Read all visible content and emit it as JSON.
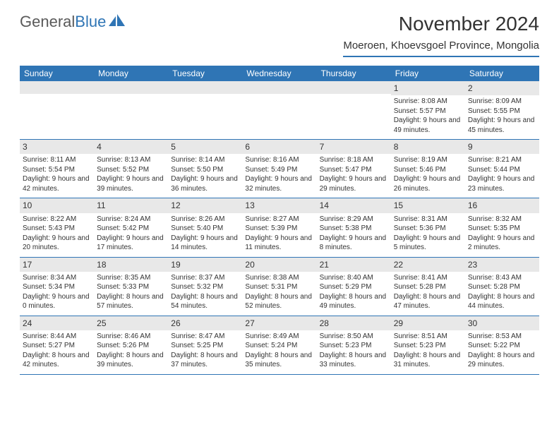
{
  "logo": {
    "text1": "General",
    "text2": "Blue"
  },
  "title": "November 2024",
  "location": "Moeroen, Khoevsgoel Province, Mongolia",
  "colors": {
    "header_bg": "#2f75b5",
    "header_text": "#ffffff",
    "daynum_bg": "#e8e8e8",
    "border": "#2f75b5",
    "body_text": "#333333",
    "logo_gray": "#5a5a5a",
    "logo_blue": "#2f75b5",
    "background": "#ffffff"
  },
  "day_labels": [
    "Sunday",
    "Monday",
    "Tuesday",
    "Wednesday",
    "Thursday",
    "Friday",
    "Saturday"
  ],
  "weeks": [
    [
      {
        "day": null
      },
      {
        "day": null
      },
      {
        "day": null
      },
      {
        "day": null
      },
      {
        "day": null
      },
      {
        "day": "1",
        "sunrise": "Sunrise: 8:08 AM",
        "sunset": "Sunset: 5:57 PM",
        "daylight": "Daylight: 9 hours and 49 minutes."
      },
      {
        "day": "2",
        "sunrise": "Sunrise: 8:09 AM",
        "sunset": "Sunset: 5:55 PM",
        "daylight": "Daylight: 9 hours and 45 minutes."
      }
    ],
    [
      {
        "day": "3",
        "sunrise": "Sunrise: 8:11 AM",
        "sunset": "Sunset: 5:54 PM",
        "daylight": "Daylight: 9 hours and 42 minutes."
      },
      {
        "day": "4",
        "sunrise": "Sunrise: 8:13 AM",
        "sunset": "Sunset: 5:52 PM",
        "daylight": "Daylight: 9 hours and 39 minutes."
      },
      {
        "day": "5",
        "sunrise": "Sunrise: 8:14 AM",
        "sunset": "Sunset: 5:50 PM",
        "daylight": "Daylight: 9 hours and 36 minutes."
      },
      {
        "day": "6",
        "sunrise": "Sunrise: 8:16 AM",
        "sunset": "Sunset: 5:49 PM",
        "daylight": "Daylight: 9 hours and 32 minutes."
      },
      {
        "day": "7",
        "sunrise": "Sunrise: 8:18 AM",
        "sunset": "Sunset: 5:47 PM",
        "daylight": "Daylight: 9 hours and 29 minutes."
      },
      {
        "day": "8",
        "sunrise": "Sunrise: 8:19 AM",
        "sunset": "Sunset: 5:46 PM",
        "daylight": "Daylight: 9 hours and 26 minutes."
      },
      {
        "day": "9",
        "sunrise": "Sunrise: 8:21 AM",
        "sunset": "Sunset: 5:44 PM",
        "daylight": "Daylight: 9 hours and 23 minutes."
      }
    ],
    [
      {
        "day": "10",
        "sunrise": "Sunrise: 8:22 AM",
        "sunset": "Sunset: 5:43 PM",
        "daylight": "Daylight: 9 hours and 20 minutes."
      },
      {
        "day": "11",
        "sunrise": "Sunrise: 8:24 AM",
        "sunset": "Sunset: 5:42 PM",
        "daylight": "Daylight: 9 hours and 17 minutes."
      },
      {
        "day": "12",
        "sunrise": "Sunrise: 8:26 AM",
        "sunset": "Sunset: 5:40 PM",
        "daylight": "Daylight: 9 hours and 14 minutes."
      },
      {
        "day": "13",
        "sunrise": "Sunrise: 8:27 AM",
        "sunset": "Sunset: 5:39 PM",
        "daylight": "Daylight: 9 hours and 11 minutes."
      },
      {
        "day": "14",
        "sunrise": "Sunrise: 8:29 AM",
        "sunset": "Sunset: 5:38 PM",
        "daylight": "Daylight: 9 hours and 8 minutes."
      },
      {
        "day": "15",
        "sunrise": "Sunrise: 8:31 AM",
        "sunset": "Sunset: 5:36 PM",
        "daylight": "Daylight: 9 hours and 5 minutes."
      },
      {
        "day": "16",
        "sunrise": "Sunrise: 8:32 AM",
        "sunset": "Sunset: 5:35 PM",
        "daylight": "Daylight: 9 hours and 2 minutes."
      }
    ],
    [
      {
        "day": "17",
        "sunrise": "Sunrise: 8:34 AM",
        "sunset": "Sunset: 5:34 PM",
        "daylight": "Daylight: 9 hours and 0 minutes."
      },
      {
        "day": "18",
        "sunrise": "Sunrise: 8:35 AM",
        "sunset": "Sunset: 5:33 PM",
        "daylight": "Daylight: 8 hours and 57 minutes."
      },
      {
        "day": "19",
        "sunrise": "Sunrise: 8:37 AM",
        "sunset": "Sunset: 5:32 PM",
        "daylight": "Daylight: 8 hours and 54 minutes."
      },
      {
        "day": "20",
        "sunrise": "Sunrise: 8:38 AM",
        "sunset": "Sunset: 5:31 PM",
        "daylight": "Daylight: 8 hours and 52 minutes."
      },
      {
        "day": "21",
        "sunrise": "Sunrise: 8:40 AM",
        "sunset": "Sunset: 5:29 PM",
        "daylight": "Daylight: 8 hours and 49 minutes."
      },
      {
        "day": "22",
        "sunrise": "Sunrise: 8:41 AM",
        "sunset": "Sunset: 5:28 PM",
        "daylight": "Daylight: 8 hours and 47 minutes."
      },
      {
        "day": "23",
        "sunrise": "Sunrise: 8:43 AM",
        "sunset": "Sunset: 5:28 PM",
        "daylight": "Daylight: 8 hours and 44 minutes."
      }
    ],
    [
      {
        "day": "24",
        "sunrise": "Sunrise: 8:44 AM",
        "sunset": "Sunset: 5:27 PM",
        "daylight": "Daylight: 8 hours and 42 minutes."
      },
      {
        "day": "25",
        "sunrise": "Sunrise: 8:46 AM",
        "sunset": "Sunset: 5:26 PM",
        "daylight": "Daylight: 8 hours and 39 minutes."
      },
      {
        "day": "26",
        "sunrise": "Sunrise: 8:47 AM",
        "sunset": "Sunset: 5:25 PM",
        "daylight": "Daylight: 8 hours and 37 minutes."
      },
      {
        "day": "27",
        "sunrise": "Sunrise: 8:49 AM",
        "sunset": "Sunset: 5:24 PM",
        "daylight": "Daylight: 8 hours and 35 minutes."
      },
      {
        "day": "28",
        "sunrise": "Sunrise: 8:50 AM",
        "sunset": "Sunset: 5:23 PM",
        "daylight": "Daylight: 8 hours and 33 minutes."
      },
      {
        "day": "29",
        "sunrise": "Sunrise: 8:51 AM",
        "sunset": "Sunset: 5:23 PM",
        "daylight": "Daylight: 8 hours and 31 minutes."
      },
      {
        "day": "30",
        "sunrise": "Sunrise: 8:53 AM",
        "sunset": "Sunset: 5:22 PM",
        "daylight": "Daylight: 8 hours and 29 minutes."
      }
    ]
  ]
}
